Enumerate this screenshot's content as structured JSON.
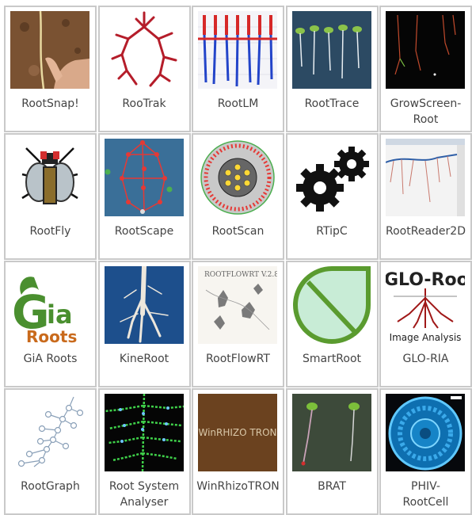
{
  "tools": [
    {
      "name": "RootSnap!",
      "icon": "hand-holding-root-photo-icon"
    },
    {
      "name": "RooTrak",
      "icon": "red-root-tracing-icon"
    },
    {
      "name": "RootLM",
      "icon": "blue-red-root-columns-icon"
    },
    {
      "name": "RootTrace",
      "icon": "seedlings-on-plate-icon"
    },
    {
      "name": "GrowScreen-\nRoot",
      "icon": "dark-root-scan-icon"
    },
    {
      "name": "RootFly",
      "icon": "pixel-fly-icon"
    },
    {
      "name": "RootScape",
      "icon": "root-landmark-graph-icon"
    },
    {
      "name": "RootScan",
      "icon": "root-cross-section-icon"
    },
    {
      "name": "RTipC",
      "icon": "gears-icon"
    },
    {
      "name": "RootReader2D",
      "icon": "root-reader-window-icon"
    },
    {
      "name": "GiA Roots",
      "icon": "gia-roots-logo-icon",
      "logo_text": "GiA Roots"
    },
    {
      "name": "KineRoot",
      "icon": "root-tip-photo-icon"
    },
    {
      "name": "RootFlowRT",
      "icon": "rootflowrt-sketch-icon",
      "logo_text": "ROOTFLOWRT V.2.8"
    },
    {
      "name": "SmartRoot",
      "icon": "smartroot-leaf-logo-icon"
    },
    {
      "name": "GLO-RIA",
      "icon": "glo-roots-logo-icon",
      "logo_text": "GLO-Roots",
      "caption": "Image Analysis"
    },
    {
      "name": "RootGraph",
      "icon": "root-node-graph-icon"
    },
    {
      "name": "Root System\nAnalyser",
      "icon": "fluorescent-root-system-icon"
    },
    {
      "name": "WinRhizoTRON",
      "icon": "winrhizotron-logo-icon",
      "logo_text": "WinRHIZO TRON"
    },
    {
      "name": "BRAT",
      "icon": "arabidopsis-seedlings-icon"
    },
    {
      "name": "PHIV-\nRootCell",
      "icon": "root-cells-cross-section-icon"
    }
  ],
  "colors": {
    "tile_border": "#c9c9c9",
    "label": "#444444"
  }
}
